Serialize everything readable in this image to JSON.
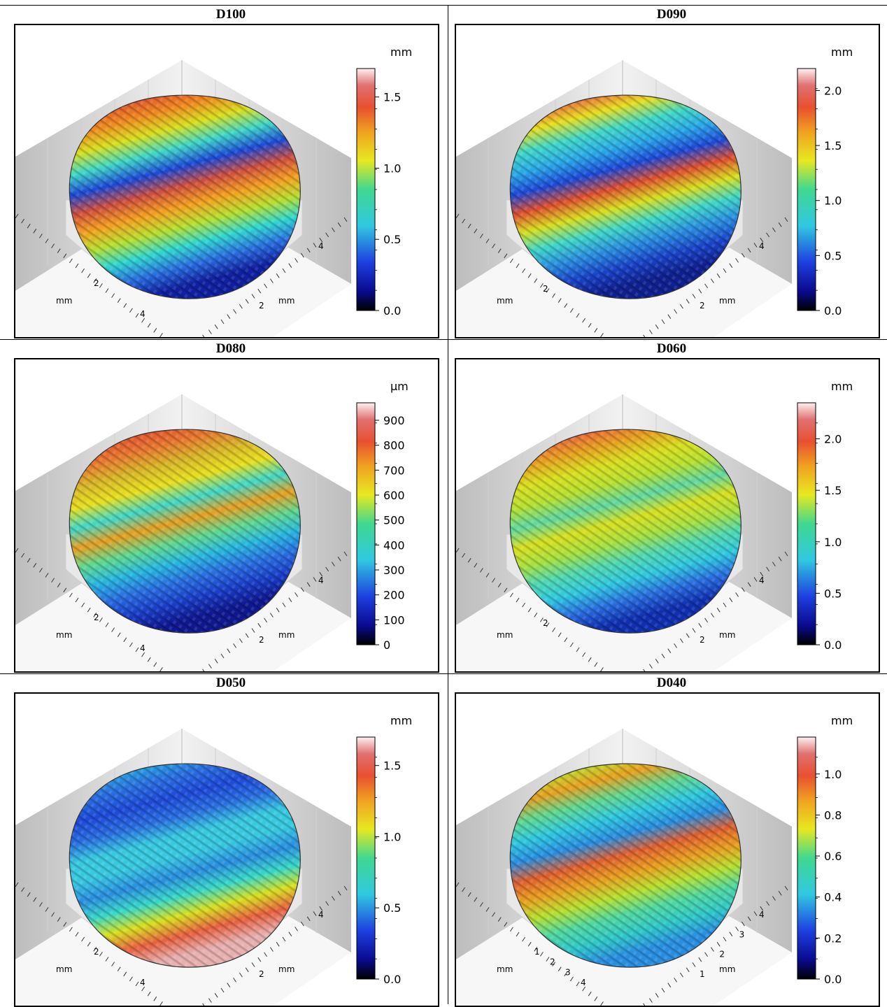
{
  "panels": [
    {
      "title": "D100",
      "unit": "mm",
      "ticks": [
        "1.5",
        "1.0",
        "0.5",
        "0.0"
      ],
      "tick_vals": [
        1.5,
        1.0,
        0.5,
        0.0
      ],
      "max": 1.7,
      "axis_left": [
        "2",
        "4"
      ],
      "axis_right": [
        "2",
        "4"
      ],
      "axis_left_unit": "mm",
      "axis_right_unit": "mm",
      "surface": {
        "top": [
          "#e4a8a8",
          "#e05030",
          "#f08a20",
          "#d8e020",
          "#40d8c8",
          "#1e4ad8"
        ],
        "bottom": [
          "#d05040",
          "#f4a020",
          "#b8e030",
          "#30d8d0",
          "#2a6ee0",
          "#1020a0"
        ]
      }
    },
    {
      "title": "D090",
      "unit": "mm",
      "ticks": [
        "2.0",
        "1.5",
        "1.0",
        "0.5",
        "0.0"
      ],
      "tick_vals": [
        2.0,
        1.5,
        1.0,
        0.5,
        0.0
      ],
      "max": 2.2,
      "axis_left": [
        "2"
      ],
      "axis_right": [
        "2",
        "4"
      ],
      "axis_left_unit": "mm",
      "axis_right_unit": "mm",
      "surface": {
        "top": [
          "#e8a8a8",
          "#e86040",
          "#e8e020",
          "#40d8c8",
          "#2aa8e8",
          "#1e4ad8"
        ],
        "bottom": [
          "#e05030",
          "#d8e020",
          "#40d8c8",
          "#2a8ee0",
          "#1a44c8",
          "#102090"
        ]
      }
    },
    {
      "title": "D080",
      "unit": "µm",
      "ticks": [
        "900",
        "800",
        "700",
        "600",
        "500",
        "400",
        "300",
        "200",
        "100",
        "0"
      ],
      "tick_vals": [
        900,
        800,
        700,
        600,
        500,
        400,
        300,
        200,
        100,
        0
      ],
      "max": 970,
      "axis_left": [
        "2",
        "4"
      ],
      "axis_right": [
        "2",
        "4"
      ],
      "axis_left_unit": "mm",
      "axis_right_unit": "mm",
      "surface": {
        "top": [
          "#e06040",
          "#e05030",
          "#e87830",
          "#d8b828",
          "#e8e020",
          "#40d8c8"
        ],
        "bottom": [
          "#e8a020",
          "#60d890",
          "#28b8e0",
          "#2a6ee0",
          "#1a3ec8",
          "#101890"
        ]
      }
    },
    {
      "title": "D060",
      "unit": "mm",
      "ticks": [
        "2.0",
        "1.5",
        "1.0",
        "0.5",
        "0.0"
      ],
      "tick_vals": [
        2.0,
        1.5,
        1.0,
        0.5,
        0.0
      ],
      "max": 2.35,
      "axis_left": [
        "2"
      ],
      "axis_right": [
        "2",
        "4"
      ],
      "axis_left_unit": "mm",
      "axis_right_unit": "mm",
      "surface": {
        "top": [
          "#e8b0b0",
          "#e86040",
          "#e8a020",
          "#d8e020",
          "#b8e030",
          "#60d8a0"
        ],
        "bottom": [
          "#d8e020",
          "#a8e040",
          "#50d8b0",
          "#30c8e0",
          "#2a6ee0",
          "#1030b0"
        ]
      }
    },
    {
      "title": "D050",
      "unit": "mm",
      "ticks": [
        "1.5",
        "1.0",
        "0.5",
        "0.0"
      ],
      "tick_vals": [
        1.5,
        1.0,
        0.5,
        0.0
      ],
      "max": 1.7,
      "axis_left": [
        "2",
        "4"
      ],
      "axis_right": [
        "2",
        "4"
      ],
      "axis_left_unit": "mm",
      "axis_right_unit": "mm",
      "surface": {
        "top": [
          "#38d8c8",
          "#2aa8e0",
          "#2a6ee0",
          "#1e4ad8",
          "#2a6ee0",
          "#38c8e0"
        ],
        "bottom": [
          "#38c8e0",
          "#2a8ee0",
          "#38d8c8",
          "#d8e020",
          "#e86040",
          "#e8b0b0"
        ]
      }
    },
    {
      "title": "D040",
      "unit": "mm",
      "ticks": [
        "1.0",
        "0.8",
        "0.6",
        "0.4",
        "0.2",
        "0.0"
      ],
      "tick_vals": [
        1.0,
        0.8,
        0.6,
        0.4,
        0.2,
        0.0
      ],
      "max": 1.18,
      "axis_left": [
        "1",
        "2",
        "3",
        "4"
      ],
      "axis_right": [
        "1",
        "2",
        "3",
        "4"
      ],
      "axis_left_unit": "mm",
      "axis_right_unit": "mm",
      "surface": {
        "top": [
          "#38c8c0",
          "#b8e030",
          "#e8a020",
          "#60d890",
          "#30c8e0",
          "#2a8ee0"
        ],
        "bottom": [
          "#e06030",
          "#e8a020",
          "#b8e030",
          "#50d8a0",
          "#30c8c8",
          "#2a8ee0"
        ]
      }
    }
  ],
  "colors": {
    "border": "#000000",
    "box_light": "#f2f2f2",
    "box_dark": "#bdbdbd",
    "disc_side": "#e8e8e8"
  }
}
